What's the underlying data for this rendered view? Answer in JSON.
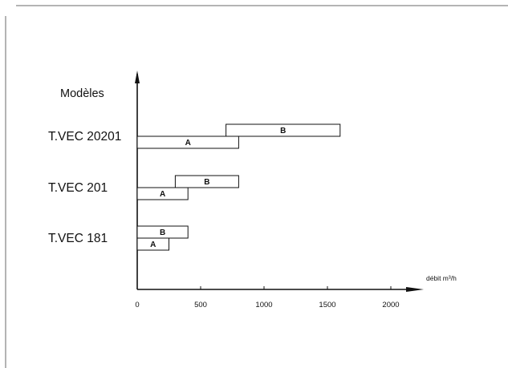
{
  "chart_data": {
    "type": "bar",
    "orientation": "horizontal",
    "style": "range",
    "title": "",
    "ylabel": "Modèles",
    "xlabel": "débit m³/h",
    "xlim": [
      0,
      2150
    ],
    "xticks": [
      0,
      500,
      1000,
      1500,
      2000
    ],
    "xtick_labels": [
      "0",
      "500",
      "1000",
      "1500",
      "2000"
    ],
    "grid": false,
    "legend": "none",
    "categories": [
      "T.VEC 20201",
      "T.VEC 201",
      "T.VEC 181"
    ],
    "series": [
      {
        "name": "B",
        "ranges": [
          [
            700,
            1600
          ],
          [
            300,
            800
          ],
          [
            0,
            400
          ]
        ]
      },
      {
        "name": "A",
        "ranges": [
          [
            0,
            800
          ],
          [
            0,
            400
          ],
          [
            0,
            250
          ]
        ]
      }
    ],
    "colors": {
      "bar_fill": "#ffffff",
      "bar_stroke": "#111111",
      "axis": "#111111",
      "frame": "#6a6a6a"
    }
  }
}
